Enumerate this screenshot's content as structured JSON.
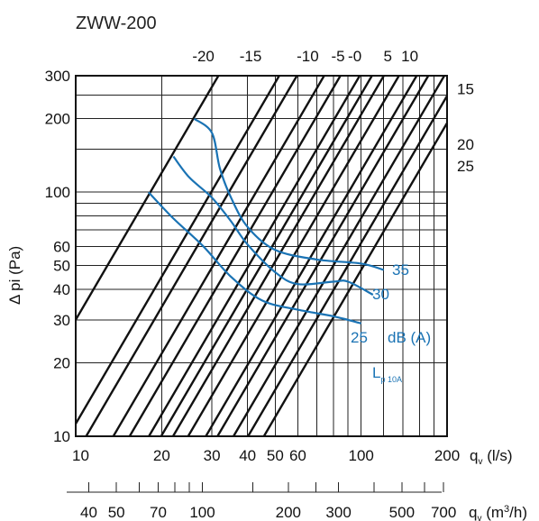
{
  "chart_data": {
    "type": "line",
    "title": "ZWW-200",
    "ylabel": "Δ pi (Pa)",
    "xlabel": "q_v (l/s)",
    "x2label": "q_v (m³/h)",
    "x_scale": "log",
    "y_scale": "log",
    "xlim": [
      10,
      200
    ],
    "ylim": [
      10,
      300
    ],
    "grid": true,
    "y_ticks": [
      {
        "value": 10,
        "label": "10"
      },
      {
        "value": 20,
        "label": "20"
      },
      {
        "value": 30,
        "label": "30"
      },
      {
        "value": 40,
        "label": "40"
      },
      {
        "value": 50,
        "label": "50"
      },
      {
        "value": 60,
        "label": "60"
      },
      {
        "value": 100,
        "label": "100"
      },
      {
        "value": 200,
        "label": "200"
      },
      {
        "value": 300,
        "label": "300"
      }
    ],
    "x_ticks": [
      {
        "value": 10,
        "label": "10"
      },
      {
        "value": 20,
        "label": "20"
      },
      {
        "value": 30,
        "label": "30"
      },
      {
        "value": 40,
        "label": "40"
      },
      {
        "value": 50,
        "label": "50"
      },
      {
        "value": 60,
        "label": "60"
      },
      {
        "value": 100,
        "label": "100"
      },
      {
        "value": 200,
        "label": "200"
      }
    ],
    "m3h_ticks": [
      {
        "value": 40,
        "label": "40"
      },
      {
        "value": 50,
        "label": "50"
      },
      {
        "value": 70,
        "label": "70"
      },
      {
        "value": 100,
        "label": "100"
      },
      {
        "value": 200,
        "label": "200"
      },
      {
        "value": 300,
        "label": "300"
      },
      {
        "value": 500,
        "label": "500"
      },
      {
        "value": 700,
        "label": "700"
      }
    ],
    "m3h_minor_ticks": [
      30,
      60,
      80,
      90,
      150,
      250,
      400,
      600
    ],
    "system_lines": {
      "description_free": true,
      "top_labels": [
        {
          "label": "-20",
          "x_at_top": 28
        },
        {
          "label": "-15",
          "x_at_top": 41
        },
        {
          "label": "-10",
          "x_at_top": 65
        },
        {
          "label": "-5",
          "x_at_top": 83
        },
        {
          "label": "-0",
          "x_at_top": 95
        },
        {
          "label": "5",
          "x_at_top": 124
        },
        {
          "label": "10",
          "x_at_top": 148
        }
      ],
      "right_labels": [
        {
          "label": "15",
          "y_at_right": 265
        },
        {
          "label": "20",
          "y_at_right": 157
        },
        {
          "label": "25",
          "y_at_right": 128
        }
      ],
      "lines": [
        {
          "k": 0.3
        },
        {
          "k": 0.1125
        },
        {
          "k": 0.0845
        },
        {
          "k": 0.0545
        },
        {
          "k": 0.0419
        },
        {
          "k": 0.0307
        },
        {
          "k": 0.0252
        },
        {
          "k": 0.0208
        },
        {
          "k": 0.0163
        },
        {
          "k": 0.01225
        },
        {
          "k": 0.01015
        },
        {
          "k": 0.00784
        },
        {
          "k": 0.0062
        },
        {
          "k": 0.0048
        }
      ]
    },
    "series": [
      {
        "name": "35",
        "points": [
          [
            26,
            200
          ],
          [
            30,
            175
          ],
          [
            32,
            125
          ],
          [
            35,
            95
          ],
          [
            40,
            72
          ],
          [
            50,
            58
          ],
          [
            70,
            53
          ],
          [
            100,
            51
          ],
          [
            120,
            48
          ]
        ]
      },
      {
        "name": "30",
        "points": [
          [
            22,
            140
          ],
          [
            25,
            115
          ],
          [
            30,
            95
          ],
          [
            35,
            76
          ],
          [
            40,
            61
          ],
          [
            50,
            47
          ],
          [
            60,
            42
          ],
          [
            80,
            43
          ],
          [
            90,
            43
          ],
          [
            110,
            38
          ]
        ]
      },
      {
        "name": "25",
        "points": [
          [
            18,
            100
          ],
          [
            22,
            78
          ],
          [
            28,
            60
          ],
          [
            35,
            45
          ],
          [
            45,
            36
          ],
          [
            60,
            33
          ],
          [
            80,
            31
          ],
          [
            100,
            29
          ]
        ]
      }
    ],
    "annotations": [
      {
        "text": "35",
        "color": "#1a73b4"
      },
      {
        "text": "30",
        "color": "#1a73b4"
      },
      {
        "text": "25",
        "color": "#1a73b4"
      },
      {
        "text": "dB (A)",
        "color": "#1a73b4"
      },
      {
        "text": "L",
        "subscript": "p 10A",
        "color": "#1a73b4"
      }
    ],
    "colors": {
      "grid": "#222222",
      "system_line": "#111111",
      "sound_line": "#1a73b4"
    }
  }
}
